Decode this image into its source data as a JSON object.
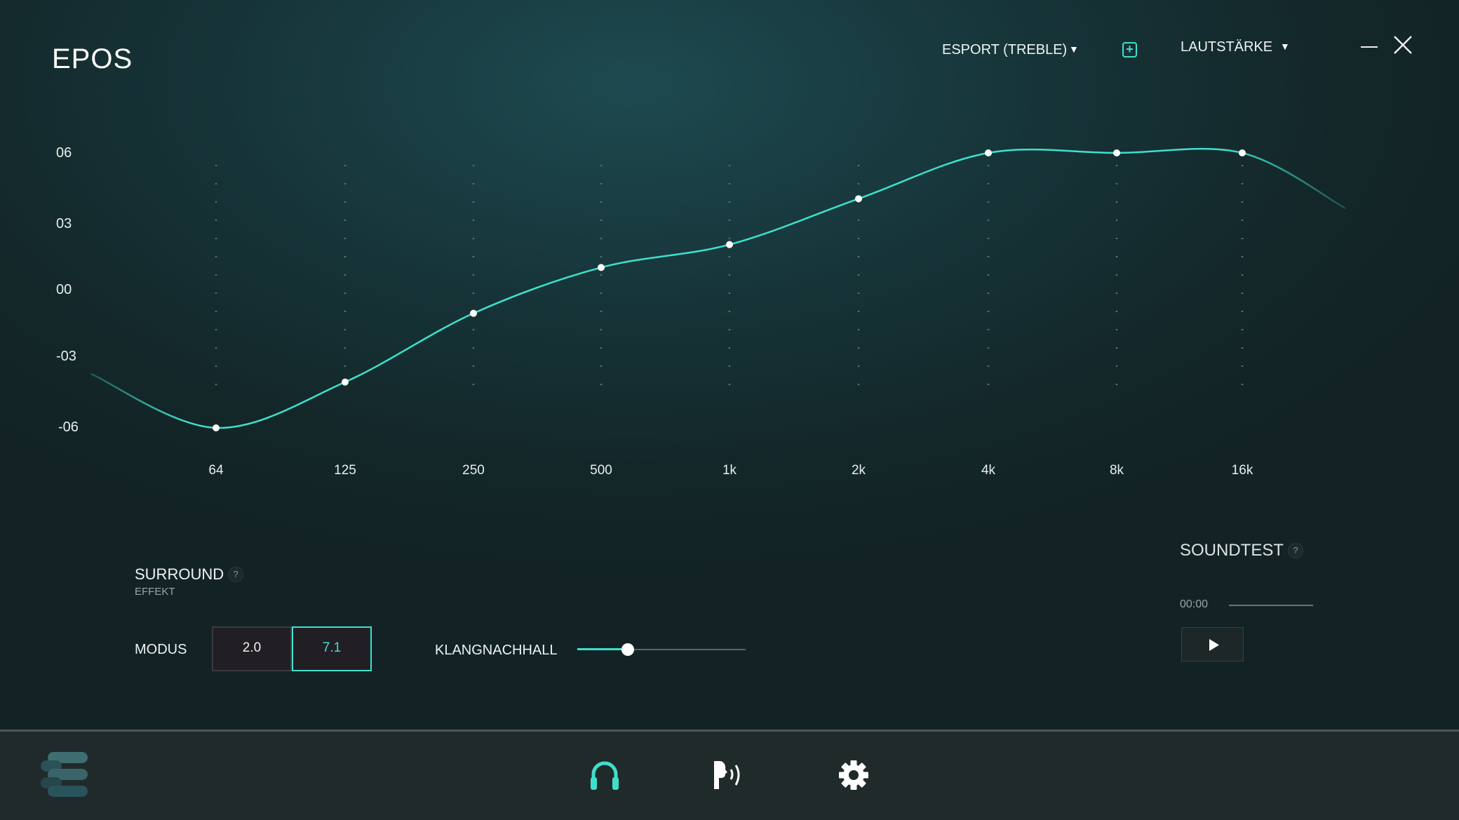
{
  "header": {
    "logo": "EPOS",
    "preset": "ESPORT (TREBLE)",
    "volume": "LAUTSTÄRKE",
    "add_preset_icon": "plus-square-icon",
    "accent": "#3ee0cc"
  },
  "chart_data": {
    "type": "line",
    "categories": [
      "64",
      "125",
      "250",
      "500",
      "1k",
      "2k",
      "4k",
      "8k",
      "16k"
    ],
    "values": [
      -6,
      -4,
      -1,
      1,
      2,
      4,
      6,
      6,
      6
    ],
    "y_ticks": [
      "06",
      "03",
      "00",
      "-03",
      "-06"
    ],
    "ylim": [
      -6,
      6
    ],
    "grid": "dotted vertical",
    "color": "#3ee0cc"
  },
  "surround": {
    "title": "SURROUND",
    "subtitle": "EFFEKT",
    "help": "?",
    "mode_label": "MODUS",
    "modes": [
      "2.0",
      "7.1"
    ],
    "selected_mode": "7.1",
    "reverb_label": "KLANGNACHHALL",
    "reverb_value": 0.3
  },
  "soundtest": {
    "title": "SOUNDTEST",
    "help": "?",
    "time": "00:00",
    "progress": 0
  },
  "nav": {
    "items": [
      "headphones-icon",
      "voice-icon",
      "gear-icon"
    ],
    "active": "headphones-icon",
    "menu_icon": "epos-menu-icon"
  }
}
